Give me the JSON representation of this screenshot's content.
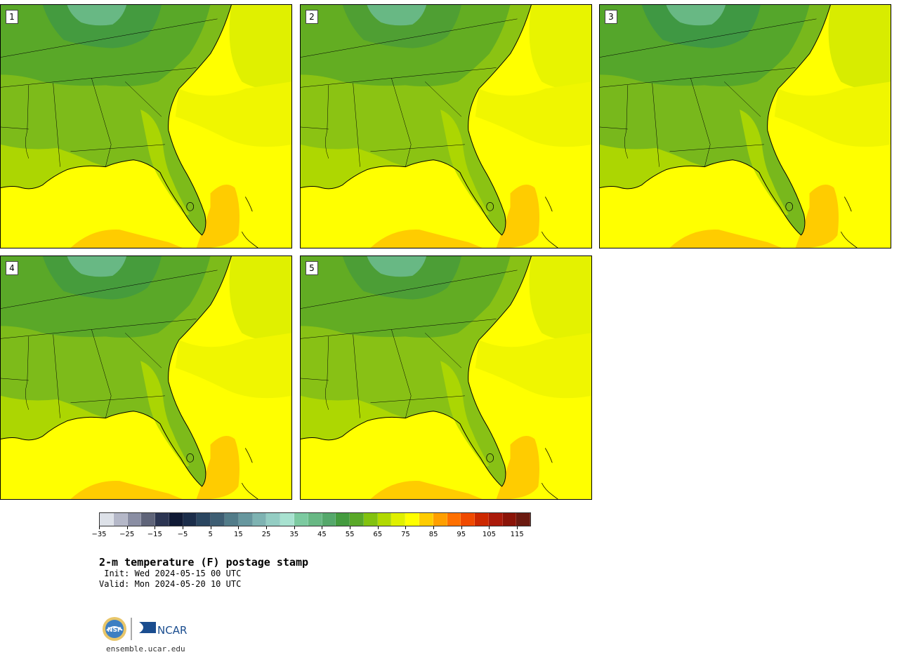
{
  "title": "2-m temperature (F) postage stamp",
  "init_line": " Init: Wed 2024-05-15 00 UTC",
  "valid_line": "Valid: Mon 2024-05-20 10 UTC",
  "site": "ensemble.ucar.edu",
  "logo_text": "NCAR",
  "panels": [
    {
      "label": "1"
    },
    {
      "label": "2"
    },
    {
      "label": "3"
    },
    {
      "label": "4"
    },
    {
      "label": "5"
    }
  ],
  "colorbar": {
    "units": "F",
    "min": -35,
    "max": 120,
    "step": 5,
    "tick_labels": [
      "−35",
      "−25",
      "−15",
      "−5",
      "5",
      "15",
      "25",
      "35",
      "45",
      "55",
      "65",
      "75",
      "85",
      "95",
      "105",
      "115"
    ],
    "colors": [
      "#dde1e8",
      "#b5b8c8",
      "#8a8ea3",
      "#5f6479",
      "#2c3552",
      "#101a35",
      "#1b2d4a",
      "#2a4660",
      "#3e5e73",
      "#527c89",
      "#67979e",
      "#7eb3b2",
      "#94cdc3",
      "#a8e2d0",
      "#7ccaa0",
      "#68b884",
      "#55a86b",
      "#449b3f",
      "#59a828",
      "#82c20f",
      "#b1d900",
      "#e0f000",
      "#ffff00",
      "#ffcc00",
      "#ff9f00",
      "#ff7000",
      "#f04a00",
      "#cc2800",
      "#aa1a0a",
      "#8a1408",
      "#6b1a10"
    ]
  }
}
